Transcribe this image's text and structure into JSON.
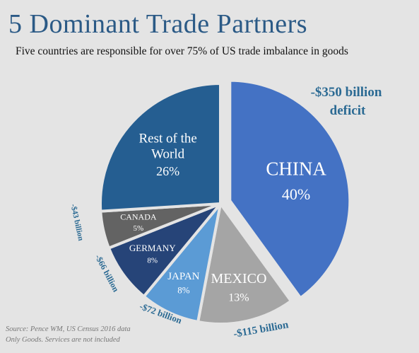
{
  "title": "5 Dominant Trade Partners",
  "subtitle": "Five countries are responsible for over  75% of US trade imbalance in goods",
  "source_line1": "Source: Pence WM, US Census 2016 data",
  "source_line2": "Only Goods. Services are not included",
  "chart_data": {
    "type": "pie",
    "title": "5 Dominant Trade Partners",
    "slices": [
      {
        "label": "CHINA",
        "value": 40,
        "value_label": "40%",
        "deficit": "-$350 billion deficit",
        "color": "#4472c4"
      },
      {
        "label": "MEXICO",
        "value": 13,
        "value_label": "13%",
        "deficit": "-$115 billion",
        "color": "#a5a5a5"
      },
      {
        "label": "JAPAN",
        "value": 8,
        "value_label": "8%",
        "deficit": "-$72 billion",
        "color": "#5b9bd5"
      },
      {
        "label": "GERMANY",
        "value": 8,
        "value_label": "8%",
        "deficit": "-$66 billion",
        "color": "#264478"
      },
      {
        "label": "CANADA",
        "value": 5,
        "value_label": "5%",
        "deficit": "-$43 billion",
        "color": "#636363"
      },
      {
        "label": "Rest of the World",
        "value": 26,
        "value_label": "26%",
        "deficit": "",
        "color": "#255e91"
      }
    ]
  }
}
